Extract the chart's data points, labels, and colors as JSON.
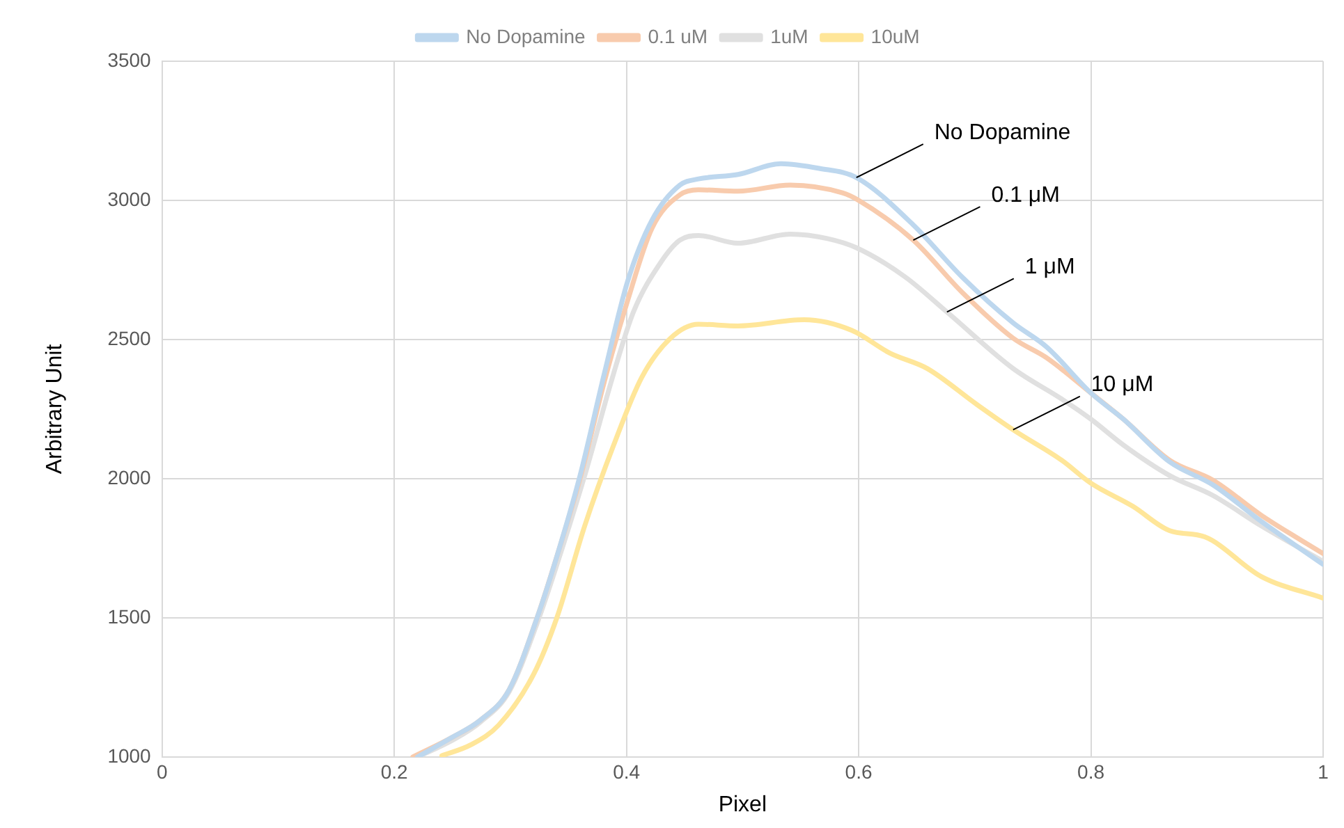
{
  "chart_data": {
    "type": "line",
    "xlabel": "Pixel",
    "ylabel": "Arbitrary Unit",
    "xlim": [
      0,
      1
    ],
    "xticks": [
      0,
      0.2,
      0.4,
      0.6,
      0.8,
      1
    ],
    "ylim": [
      1000,
      3500
    ],
    "yticks": [
      1000,
      1500,
      2000,
      2500,
      3000,
      3500
    ],
    "grid": true,
    "legend": "top",
    "marker": "none",
    "line_style": "solid",
    "series": [
      {
        "name": "No Dopamine",
        "color": "#bdd7ee",
        "x": [
          0.22,
          0.25,
          0.274,
          0.299,
          0.323,
          0.34,
          0.36,
          0.381,
          0.401,
          0.422,
          0.446,
          0.462,
          0.496,
          0.533,
          0.566,
          0.598,
          0.647,
          0.689,
          0.733,
          0.762,
          0.8,
          0.828,
          0.868,
          0.905,
          0.947,
          1.0
        ],
        "values": [
          1000,
          1071,
          1132,
          1242,
          1500,
          1720,
          2011,
          2379,
          2709,
          2929,
          3055,
          3077,
          3093,
          3132,
          3115,
          3082,
          2912,
          2725,
          2560,
          2473,
          2308,
          2214,
          2060,
          1978,
          1846,
          1692
        ]
      },
      {
        "name": "0.1 uM",
        "color": "#f8cbad",
        "x": [
          0.216,
          0.25,
          0.274,
          0.299,
          0.323,
          0.34,
          0.36,
          0.381,
          0.401,
          0.422,
          0.446,
          0.462,
          0.496,
          0.541,
          0.586,
          0.6,
          0.647,
          0.689,
          0.733,
          0.762,
          0.8,
          0.828,
          0.868,
          0.905,
          0.947,
          1.0
        ],
        "values": [
          1000,
          1071,
          1132,
          1242,
          1500,
          1720,
          2000,
          2350,
          2640,
          2900,
          3020,
          3038,
          3033,
          3055,
          3027,
          3000,
          2857,
          2670,
          2505,
          2434,
          2308,
          2214,
          2066,
          1995,
          1868,
          1731
        ]
      },
      {
        "name": "1uM",
        "color": "#e0e0e0",
        "x": [
          0.22,
          0.25,
          0.274,
          0.299,
          0.323,
          0.34,
          0.364,
          0.389,
          0.406,
          0.43,
          0.446,
          0.462,
          0.496,
          0.541,
          0.573,
          0.598,
          0.64,
          0.676,
          0.733,
          0.775,
          0.8,
          0.828,
          0.868,
          0.905,
          0.947,
          1.0
        ],
        "values": [
          1000,
          1060,
          1125,
          1235,
          1480,
          1690,
          2011,
          2379,
          2599,
          2780,
          2857,
          2874,
          2846,
          2879,
          2863,
          2830,
          2725,
          2599,
          2396,
          2286,
          2214,
          2121,
          2011,
          1940,
          1830,
          1703
        ]
      },
      {
        "name": "10uM",
        "color": "#ffe699",
        "x": [
          0.241,
          0.266,
          0.29,
          0.32,
          0.34,
          0.364,
          0.389,
          0.413,
          0.438,
          0.462,
          0.496,
          0.553,
          0.594,
          0.627,
          0.659,
          0.701,
          0.733,
          0.775,
          0.8,
          0.836,
          0.868,
          0.898,
          0.947,
          1.0
        ],
        "values": [
          1005,
          1044,
          1115,
          1297,
          1500,
          1830,
          2121,
          2363,
          2505,
          2555,
          2549,
          2571,
          2533,
          2451,
          2396,
          2269,
          2176,
          2066,
          1984,
          1901,
          1813,
          1791,
          1648,
          1571
        ]
      }
    ],
    "annotations": [
      {
        "text": "No Dopamine",
        "x": 0.598,
        "y": 3082
      },
      {
        "text": "0.1 μM",
        "x": 0.647,
        "y": 2857
      },
      {
        "text": "1 μM",
        "x": 0.676,
        "y": 2599
      },
      {
        "text": "10 μM",
        "x": 0.733,
        "y": 2176
      }
    ]
  }
}
